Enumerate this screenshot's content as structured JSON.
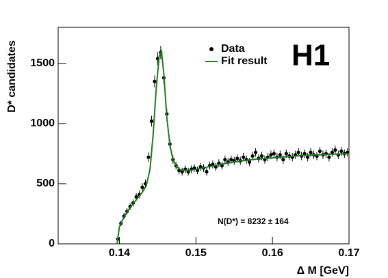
{
  "chart_data": {
    "type": "scatter",
    "y_label": "D* candidates",
    "x_label": "Δ M [GeV]",
    "logo": "H1",
    "annotation": "N(D*) = 8232 ± 164",
    "xlim": [
      0.132,
      0.17
    ],
    "ylim": [
      0,
      1800
    ],
    "xticks": [
      0.14,
      0.15,
      0.16,
      0.17
    ],
    "yticks": [
      0,
      500,
      1000,
      1500
    ],
    "legend": "top-right",
    "series": [
      {
        "name": "Data",
        "color": "#000000",
        "type": "scatter",
        "x": [
          0.1398,
          0.1402,
          0.1406,
          0.141,
          0.1414,
          0.1418,
          0.1422,
          0.1426,
          0.143,
          0.1434,
          0.1438,
          0.1442,
          0.1446,
          0.145,
          0.1454,
          0.1458,
          0.1462,
          0.1466,
          0.147,
          0.1474,
          0.1478,
          0.1482,
          0.1486,
          0.149,
          0.1494,
          0.1498,
          0.1502,
          0.1506,
          0.151,
          0.1514,
          0.1518,
          0.1522,
          0.1526,
          0.153,
          0.1534,
          0.1538,
          0.1542,
          0.1546,
          0.155,
          0.1554,
          0.1558,
          0.1562,
          0.1566,
          0.157,
          0.1574,
          0.1578,
          0.1582,
          0.1586,
          0.159,
          0.1594,
          0.1598,
          0.1602,
          0.1606,
          0.161,
          0.1614,
          0.1618,
          0.1622,
          0.1626,
          0.163,
          0.1634,
          0.1638,
          0.1642,
          0.1646,
          0.165,
          0.1654,
          0.1658,
          0.1662,
          0.1666,
          0.167,
          0.1674,
          0.1678,
          0.1682,
          0.1686,
          0.169,
          0.1694,
          0.1698
        ],
        "values": [
          40,
          170,
          230,
          270,
          310,
          340,
          390,
          410,
          470,
          500,
          720,
          1020,
          1350,
          1540,
          1590,
          1380,
          1080,
          830,
          700,
          650,
          610,
          600,
          620,
          600,
          620,
          630,
          610,
          640,
          630,
          600,
          650,
          660,
          640,
          670,
          650,
          700,
          680,
          700,
          690,
          710,
          690,
          720,
          700,
          680,
          730,
          760,
          710,
          730,
          700,
          720,
          740,
          750,
          720,
          740,
          700,
          750,
          730,
          720,
          740,
          760,
          730,
          750,
          720,
          760,
          740,
          730,
          770,
          740,
          750,
          720,
          760,
          780,
          740,
          770,
          750,
          760
        ],
        "errors": [
          15,
          22,
          25,
          27,
          28,
          30,
          31,
          32,
          34,
          35,
          40,
          45,
          50,
          55,
          55,
          50,
          45,
          38,
          35,
          33,
          32,
          32,
          32,
          32,
          32,
          32,
          32,
          33,
          33,
          32,
          33,
          33,
          33,
          33,
          33,
          34,
          34,
          34,
          34,
          34,
          34,
          35,
          34,
          34,
          35,
          35,
          34,
          35,
          34,
          35,
          35,
          35,
          35,
          35,
          34,
          35,
          35,
          35,
          35,
          35,
          35,
          35,
          35,
          35,
          35,
          35,
          36,
          35,
          35,
          35,
          35,
          36,
          35,
          36,
          35,
          35
        ]
      },
      {
        "name": "Fit result",
        "color": "#1f7a1f",
        "type": "line",
        "x": [
          0.1397,
          0.14,
          0.1405,
          0.141,
          0.1415,
          0.142,
          0.1425,
          0.143,
          0.1435,
          0.144,
          0.1444,
          0.1448,
          0.1452,
          0.1455,
          0.1458,
          0.1462,
          0.1466,
          0.147,
          0.1475,
          0.148,
          0.149,
          0.15,
          0.152,
          0.154,
          0.156,
          0.158,
          0.16,
          0.162,
          0.164,
          0.166,
          0.168,
          0.17
        ],
        "values": [
          0,
          140,
          210,
          265,
          310,
          350,
          390,
          430,
          480,
          620,
          900,
          1280,
          1560,
          1600,
          1420,
          1050,
          820,
          700,
          640,
          615,
          610,
          620,
          645,
          670,
          690,
          705,
          715,
          725,
          735,
          740,
          745,
          750
        ]
      }
    ]
  }
}
